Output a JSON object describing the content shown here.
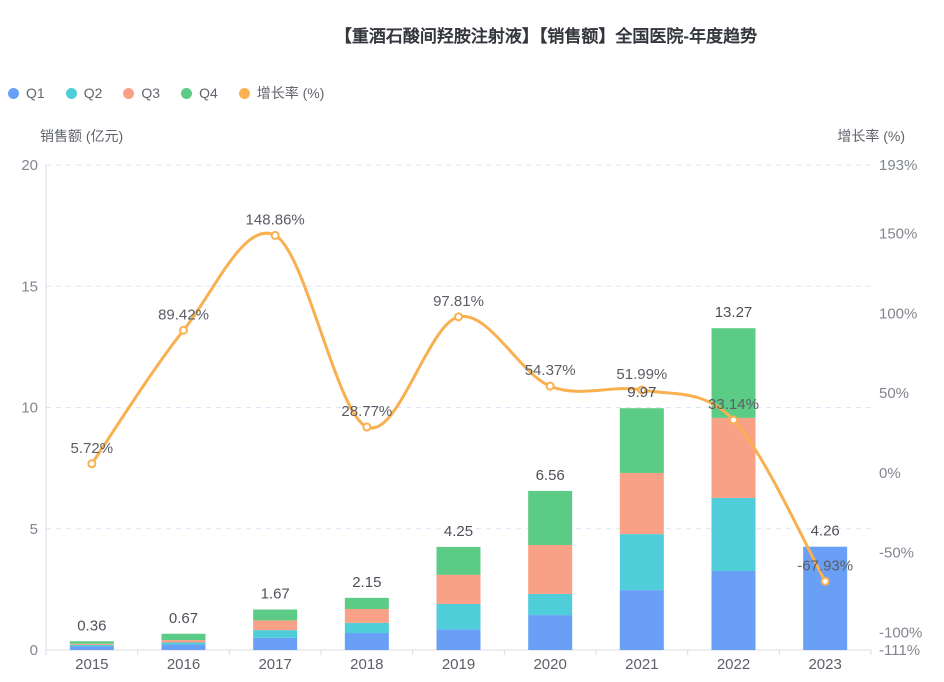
{
  "title": "【重酒石酸间羟胺注射液】【销售额】全国医院-年度趋势",
  "legend": {
    "items": [
      {
        "label": "Q1",
        "color": "#69a0f6"
      },
      {
        "label": "Q2",
        "color": "#4fced9"
      },
      {
        "label": "Q3",
        "color": "#f9a186"
      },
      {
        "label": "Q4",
        "color": "#5ccb85"
      },
      {
        "label": "增长率 (%)",
        "color": "#fbb254"
      }
    ]
  },
  "axes": {
    "left_name": "销售额 (亿元)",
    "right_name": "增长率 (%)"
  },
  "chart_data": {
    "type": "bar+line combo (stacked bars, dual y-axes)",
    "title": "【重酒石酸间羟胺注射液】【销售额】全国医院-年度趋势",
    "categories": [
      "2015",
      "2016",
      "2017",
      "2018",
      "2019",
      "2020",
      "2021",
      "2022",
      "2023"
    ],
    "series": [
      {
        "name": "Q1",
        "type": "bar",
        "color": "#69a0f6",
        "values": [
          0.16,
          0.23,
          0.5,
          0.7,
          0.85,
          1.44,
          2.47,
          3.26,
          4.26
        ]
      },
      {
        "name": "Q2",
        "type": "bar",
        "color": "#4fced9",
        "values": [
          0.05,
          0.08,
          0.32,
          0.42,
          1.05,
          0.87,
          2.31,
          3.01,
          0
        ]
      },
      {
        "name": "Q3",
        "type": "bar",
        "color": "#f9a186",
        "values": [
          0.05,
          0.1,
          0.4,
          0.57,
          1.2,
          2.02,
          2.52,
          3.3,
          0
        ]
      },
      {
        "name": "Q4",
        "type": "bar",
        "color": "#5ccb85",
        "values": [
          0.1,
          0.26,
          0.45,
          0.46,
          1.15,
          2.23,
          2.67,
          3.7,
          0
        ]
      }
    ],
    "bar_totals": [
      0.36,
      0.67,
      1.67,
      2.15,
      4.25,
      6.56,
      9.97,
      13.27,
      4.26
    ],
    "bar_total_labels": [
      "0.36",
      "0.67",
      "1.67",
      "2.15",
      "4.25",
      "6.56",
      "9.97",
      "13.27",
      "4.26"
    ],
    "line_series": {
      "name": "增长率 (%)",
      "type": "line",
      "color": "#f9b050",
      "values": [
        5.72,
        89.42,
        148.86,
        28.77,
        97.81,
        54.37,
        51.99,
        33.14,
        -67.93
      ],
      "labels": [
        "5.72%",
        "89.42%",
        "148.86%",
        "28.77%",
        "97.81%",
        "54.37%",
        "51.99%",
        "33.14%",
        "-67.93%"
      ]
    },
    "left_axis": {
      "name": "销售额 (亿元)",
      "min": 0,
      "max": 20,
      "ticks": [
        0,
        5,
        10,
        15,
        20
      ],
      "tick_labels": [
        "0",
        "5",
        "10",
        "15",
        "20"
      ]
    },
    "right_axis": {
      "name": "增长率 (%)",
      "min": -111,
      "max": 193,
      "ticks": [
        193,
        150,
        100,
        50,
        0,
        -50,
        -100,
        -111
      ],
      "tick_labels": [
        "193%",
        "150%",
        "100%",
        "50%",
        "0%",
        "-50%",
        "-100%",
        "-111%"
      ]
    },
    "grid": "horizontal dashed gridlines at left-axis ticks",
    "legend_position": "top-left"
  },
  "colors": {
    "grid_line": "#dde4f2",
    "axis_line": "#d9dde4",
    "tick_text": "#82868f",
    "x_label_text": "#5b6069",
    "bar_label_text": "#4e5158",
    "growth_label_text": "#5a5d63",
    "marker_fill": "#ffffff"
  }
}
